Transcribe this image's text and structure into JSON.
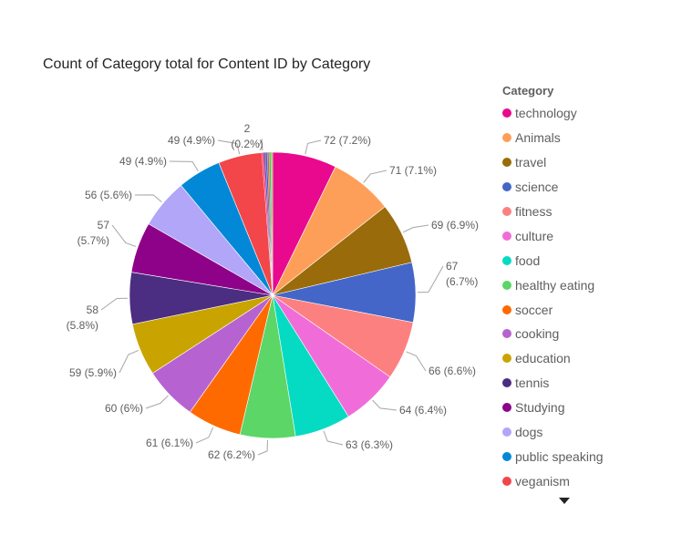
{
  "chart_data": {
    "type": "pie",
    "title": "Count of Category total for Content ID by Category",
    "legend_title": "Category",
    "legend_position": "right",
    "slices": [
      {
        "category": "technology",
        "value": 72,
        "label": "72 (7.2%)",
        "color": "#E8098E"
      },
      {
        "category": "Animals",
        "value": 71,
        "label": "71 (7.1%)",
        "color": "#FE9F59"
      },
      {
        "category": "travel",
        "value": 69,
        "label": "69 (6.9%)",
        "color": "#9A6B0A"
      },
      {
        "category": "science",
        "value": 67,
        "label": "67 (6.7%)",
        "color": "#4466C8"
      },
      {
        "category": "fitness",
        "value": 66,
        "label": "66 (6.6%)",
        "color": "#FD8080"
      },
      {
        "category": "culture",
        "value": 64,
        "label": "64 (6.4%)",
        "color": "#F06DD9"
      },
      {
        "category": "food",
        "value": 63,
        "label": "63 (6.3%)",
        "color": "#05DBC2"
      },
      {
        "category": "healthy eating",
        "value": 62,
        "label": "62 (6.2%)",
        "color": "#5BD667"
      },
      {
        "category": "soccer",
        "value": 61,
        "label": "61 (6.1%)",
        "color": "#FF6A00"
      },
      {
        "category": "cooking",
        "value": 60,
        "label": "60 (6%)",
        "color": "#B663D1"
      },
      {
        "category": "education",
        "value": 59,
        "label": "59 (5.9%)",
        "color": "#C9A400"
      },
      {
        "category": "tennis",
        "value": 58,
        "label": "58 (5.8%)",
        "color": "#4B2D82"
      },
      {
        "category": "Studying",
        "value": 57,
        "label": "57 (5.7%)",
        "color": "#8E028A"
      },
      {
        "category": "dogs",
        "value": 56,
        "label": "56 (5.6%)",
        "color": "#B1A6F8"
      },
      {
        "category": "public speaking",
        "value": 49,
        "label": "49 (4.9%)",
        "color": "#0288D6"
      },
      {
        "category": "veganism",
        "value": 49,
        "label": "49 (4.9%)",
        "color": "#F2464A"
      },
      {
        "value": 2,
        "label": "2 (0.2%)",
        "color": "#EC2F7A"
      },
      {
        "value": 2,
        "label": "",
        "color": "#7B3FA0"
      },
      {
        "value": 2,
        "label": "",
        "color": "#2F5FCC"
      },
      {
        "value": 2,
        "label": "",
        "color": "#E95B22"
      },
      {
        "value": 2,
        "label": "",
        "color": "#3FB3A0"
      },
      {
        "value": 2,
        "label": "",
        "color": "#9ACD32"
      }
    ]
  }
}
